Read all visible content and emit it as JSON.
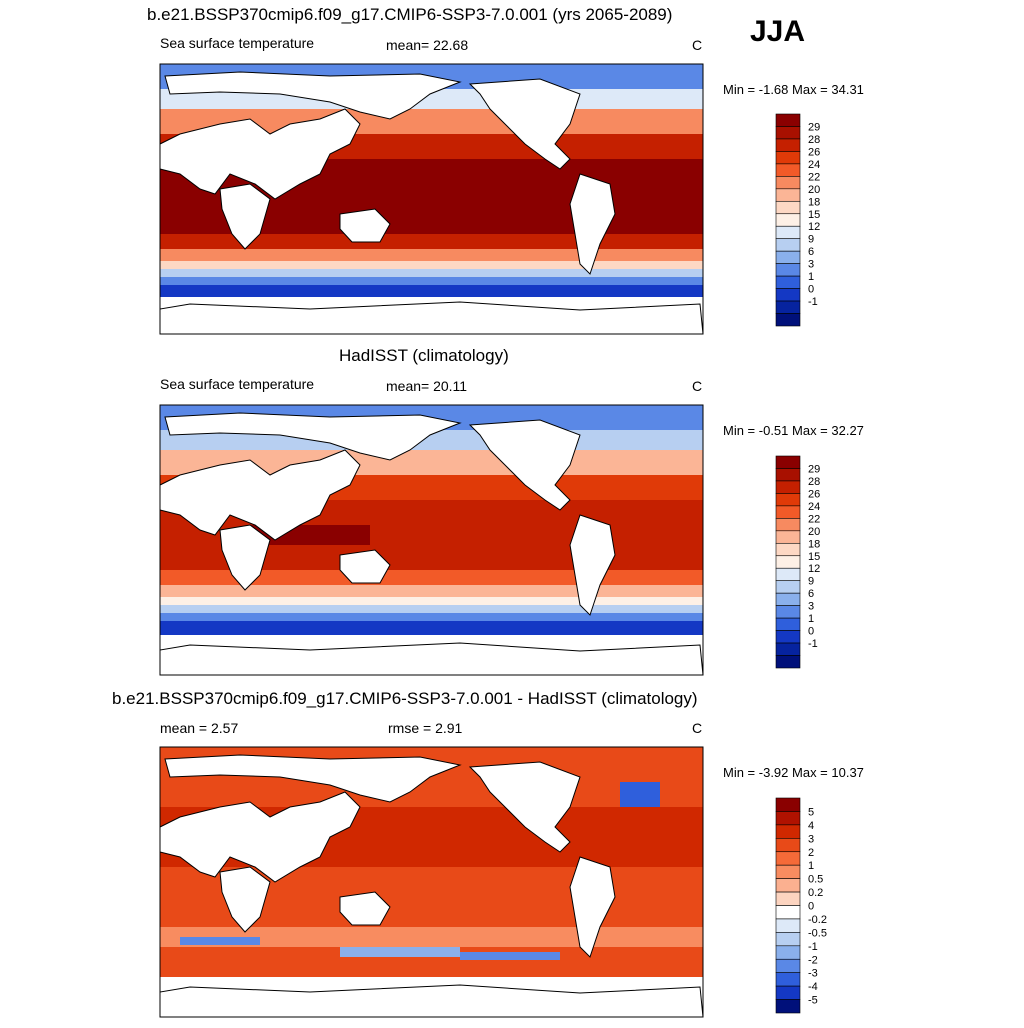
{
  "season": "JJA",
  "land_color": "#ffffff",
  "coast_color": "#000000",
  "panels": [
    {
      "title": "b.e21.BSSP370cmip6.f09_g17.CMIP6-SSP3-7.0.001 (yrs 2065-2089)",
      "left": "Sea surface temperature",
      "center": "mean=  22.68",
      "units": "C",
      "minmax": "Min =  -1.68 Max =  34.31",
      "colorbar": {
        "labels": [
          "29",
          "28",
          "26",
          "24",
          "22",
          "20",
          "18",
          "15",
          "12",
          "9",
          "6",
          "3",
          "1",
          "0",
          "-1"
        ],
        "colors": [
          "#8a0000",
          "#a81000",
          "#c52000",
          "#e03a08",
          "#f25a28",
          "#f78a60",
          "#fbb596",
          "#fdd8c4",
          "#fdf0e6",
          "#dde9f8",
          "#b7cff1",
          "#8ab0ec",
          "#5a88e6",
          "#2f5fdc",
          "#1438c4",
          "#06239f",
          "#00107a"
        ]
      },
      "map_fill": "#c03018"
    },
    {
      "title": "HadISST (climatology)",
      "left": "Sea surface temperature",
      "center": "mean=  20.11",
      "units": "C",
      "minmax": "Min =  -0.51 Max =  32.27",
      "colorbar": {
        "labels": [
          "29",
          "28",
          "26",
          "24",
          "22",
          "20",
          "18",
          "15",
          "12",
          "9",
          "6",
          "3",
          "1",
          "0",
          "-1"
        ],
        "colors": [
          "#8a0000",
          "#a81000",
          "#c52000",
          "#e03a08",
          "#f25a28",
          "#f78a60",
          "#fbb596",
          "#fdd8c4",
          "#fdf0e6",
          "#dde9f8",
          "#b7cff1",
          "#8ab0ec",
          "#5a88e6",
          "#2f5fdc",
          "#1438c4",
          "#06239f",
          "#00107a"
        ]
      },
      "map_fill": "#d84020"
    },
    {
      "title": "b.e21.BSSP370cmip6.f09_g17.CMIP6-SSP3-7.0.001 - HadISST (climatology)",
      "left": "mean =   2.57",
      "center": "rmse =   2.91",
      "units": "C",
      "minmax": "Min =  -3.92 Max =  10.37",
      "colorbar": {
        "labels": [
          "5",
          "4",
          "3",
          "2",
          "1",
          "0.5",
          "0.2",
          "0",
          "-0.2",
          "-0.5",
          "-1",
          "-2",
          "-3",
          "-4",
          "-5"
        ],
        "colors": [
          "#8a0000",
          "#b01200",
          "#d02800",
          "#e84a18",
          "#f56a38",
          "#f88c60",
          "#fbb090",
          "#fcd4c0",
          "#ffffff",
          "#dde9f8",
          "#b7cff1",
          "#8ab0ec",
          "#5a88e6",
          "#2f5fdc",
          "#1438c4",
          "#00107a"
        ]
      },
      "map_fill": "#e85a28"
    }
  ]
}
